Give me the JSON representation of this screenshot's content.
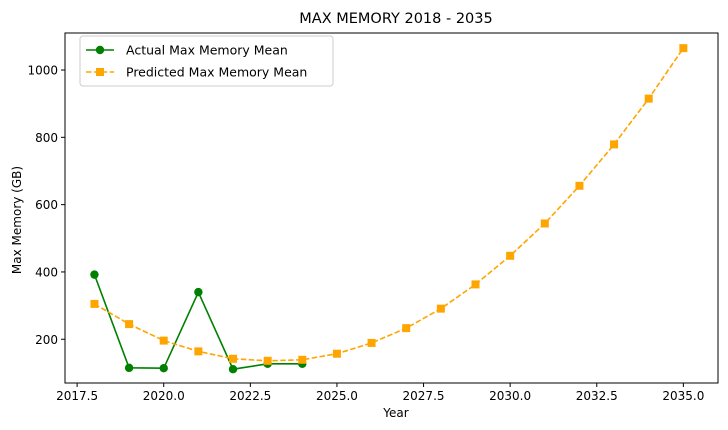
{
  "chart_data": {
    "type": "line",
    "title": "MAX MEMORY 2018 - 2035",
    "xlabel": "Year",
    "ylabel": "Max Memory (GB)",
    "xlim": [
      2017.15,
      2036.0
    ],
    "ylim": [
      70,
      1110
    ],
    "x_ticks": [
      2017.5,
      2020.0,
      2022.5,
      2025.0,
      2027.5,
      2030.0,
      2032.5,
      2035.0
    ],
    "x_tick_labels": [
      "2017.5",
      "2020.0",
      "2022.5",
      "2025.0",
      "2027.5",
      "2030.0",
      "2032.5",
      "2035.0"
    ],
    "y_ticks": [
      200,
      400,
      600,
      800,
      1000
    ],
    "y_tick_labels": [
      "200",
      "400",
      "600",
      "800",
      "1000"
    ],
    "grid": false,
    "legend_position": "top-left",
    "series": [
      {
        "name": "Actual Max Memory Mean",
        "color": "#008000",
        "marker": "circle",
        "line_style": "solid",
        "x": [
          2018,
          2019,
          2020,
          2021,
          2022,
          2023,
          2024
        ],
        "values": [
          392,
          115,
          114,
          340,
          111,
          127,
          127
        ]
      },
      {
        "name": "Predicted Max Memory Mean",
        "color": "#ffa500",
        "marker": "square",
        "line_style": "dashed",
        "x": [
          2018,
          2019,
          2020,
          2021,
          2022,
          2023,
          2024,
          2025,
          2026,
          2027,
          2028,
          2029,
          2030,
          2031,
          2032,
          2033,
          2034,
          2035
        ],
        "values": [
          305,
          245,
          196,
          164,
          142,
          136,
          139,
          157,
          189,
          233,
          291,
          363,
          448,
          544,
          656,
          779,
          915,
          1065
        ]
      }
    ]
  }
}
